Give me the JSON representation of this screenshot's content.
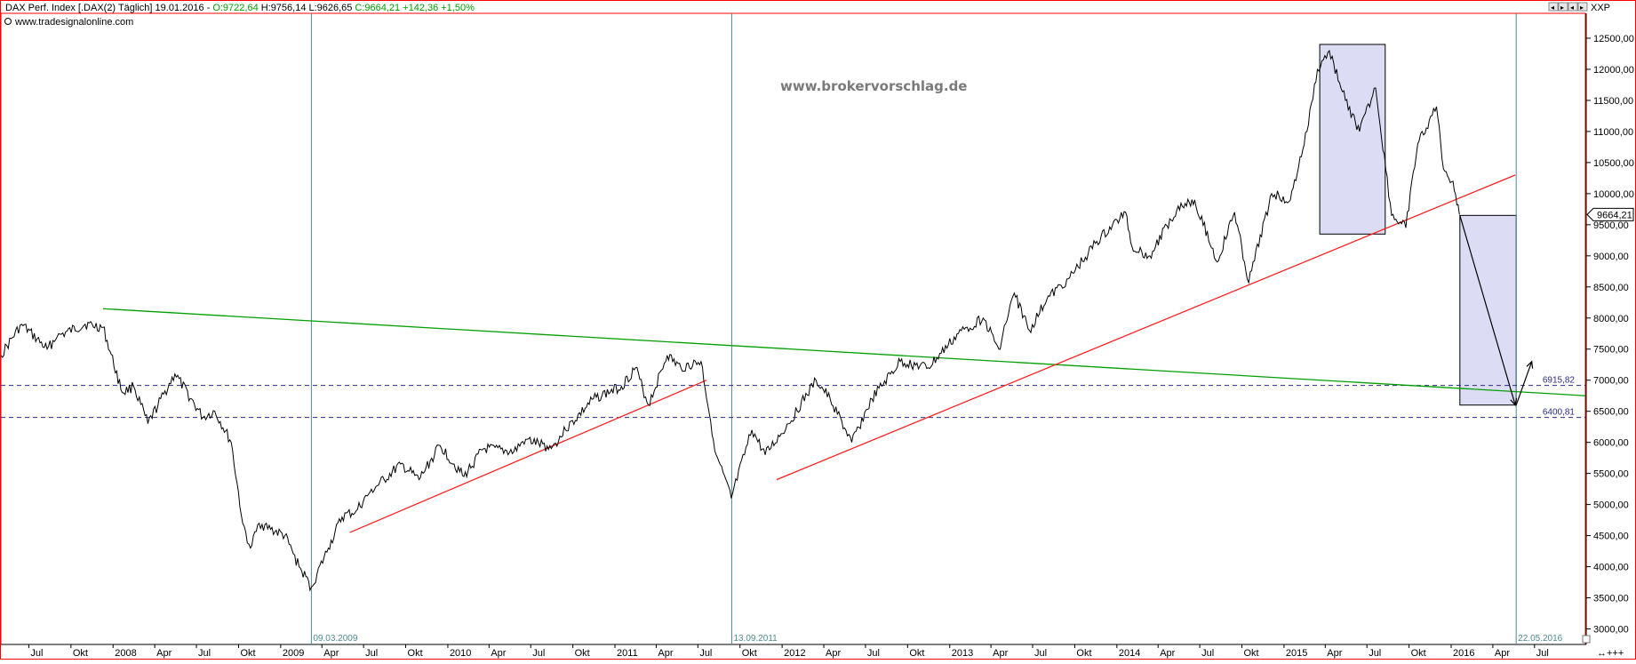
{
  "header": {
    "title": "DAX Perf. Index [.DAX(2)  Täglich] 19.01.2016 -",
    "open": "O:9722,64",
    "high": "H:9756,14",
    "low": "L:9626,65",
    "close": "C:9664,21",
    "change": "+142,36",
    "change_pct": "+1,50%",
    "source": "www.tradesignalonline.com",
    "top_right_label": "XXP",
    "colors": {
      "title": "#000000",
      "ohlc": "#000000",
      "close": "#00a000",
      "change": "#00a000"
    }
  },
  "watermark": "www.brokervorschlag.de",
  "chart_data": {
    "type": "line",
    "title": "DAX Perf. Index [.DAX(2)  Täglich] 19.01.2016",
    "xlabel": "",
    "ylabel": "",
    "y_scale": "linear",
    "ylim": [
      2750,
      12900
    ],
    "xlim": [
      "2007-05-01",
      "2016-10-20"
    ],
    "grid": false,
    "y_ticks": [
      "12500,00",
      "12000,00",
      "11500,00",
      "11000,00",
      "10500,00",
      "10000,00",
      "9500,00",
      "9000,00",
      "8500,00",
      "8000,00",
      "7500,00",
      "7000,00",
      "6500,00",
      "6000,00",
      "5500,00",
      "5000,00",
      "4500,00",
      "4000,00",
      "3500,00",
      "3000,00"
    ],
    "y_tick_values": [
      12500,
      12000,
      11500,
      11000,
      10500,
      10000,
      9500,
      9000,
      8500,
      8000,
      7500,
      7000,
      6500,
      6000,
      5500,
      5000,
      4500,
      4000,
      3500,
      3000
    ],
    "x_ticks": [
      {
        "date": "2007-07-01",
        "label": "Jul"
      },
      {
        "date": "2007-10-01",
        "label": "Okt"
      },
      {
        "date": "2008-01-01",
        "label": "2008"
      },
      {
        "date": "2008-04-01",
        "label": "Apr"
      },
      {
        "date": "2008-07-01",
        "label": "Jul"
      },
      {
        "date": "2008-10-01",
        "label": "Okt"
      },
      {
        "date": "2009-01-01",
        "label": "2009"
      },
      {
        "date": "2009-04-01",
        "label": "Apr"
      },
      {
        "date": "2009-07-01",
        "label": "Jul"
      },
      {
        "date": "2009-10-01",
        "label": "Okt"
      },
      {
        "date": "2010-01-01",
        "label": "2010"
      },
      {
        "date": "2010-04-01",
        "label": "Apr"
      },
      {
        "date": "2010-07-01",
        "label": "Jul"
      },
      {
        "date": "2010-10-01",
        "label": "Okt"
      },
      {
        "date": "2011-01-01",
        "label": "2011"
      },
      {
        "date": "2011-04-01",
        "label": "Apr"
      },
      {
        "date": "2011-07-01",
        "label": "Jul"
      },
      {
        "date": "2011-10-01",
        "label": "Okt"
      },
      {
        "date": "2012-01-01",
        "label": "2012"
      },
      {
        "date": "2012-04-01",
        "label": "Apr"
      },
      {
        "date": "2012-07-01",
        "label": "Jul"
      },
      {
        "date": "2012-10-01",
        "label": "Okt"
      },
      {
        "date": "2013-01-01",
        "label": "2013"
      },
      {
        "date": "2013-04-01",
        "label": "Apr"
      },
      {
        "date": "2013-07-01",
        "label": "Jul"
      },
      {
        "date": "2013-10-01",
        "label": "Okt"
      },
      {
        "date": "2014-01-01",
        "label": "2014"
      },
      {
        "date": "2014-04-01",
        "label": "Apr"
      },
      {
        "date": "2014-07-01",
        "label": "Jul"
      },
      {
        "date": "2014-10-01",
        "label": "Okt"
      },
      {
        "date": "2015-01-01",
        "label": "2015"
      },
      {
        "date": "2015-04-01",
        "label": "Apr"
      },
      {
        "date": "2015-07-01",
        "label": "Jul"
      },
      {
        "date": "2015-10-01",
        "label": "Okt"
      },
      {
        "date": "2016-01-01",
        "label": "2016"
      },
      {
        "date": "2016-04-01",
        "label": "Apr"
      },
      {
        "date": "2016-07-01",
        "label": "Jul"
      }
    ],
    "series": [
      {
        "color": "#000000",
        "x": [
          "2007-05-01",
          "2007-06-15",
          "2007-08-10",
          "2007-09-01",
          "2007-11-01",
          "2007-12-10",
          "2008-01-21",
          "2008-02-15",
          "2008-03-17",
          "2008-05-15",
          "2008-07-15",
          "2008-08-10",
          "2008-09-15",
          "2008-10-10",
          "2008-10-27",
          "2008-11-15",
          "2008-12-10",
          "2009-01-10",
          "2009-02-10",
          "2009-03-09",
          "2009-04-15",
          "2009-05-15",
          "2009-06-15",
          "2009-07-15",
          "2009-08-15",
          "2009-09-20",
          "2009-10-30",
          "2009-12-15",
          "2010-02-05",
          "2010-03-20",
          "2010-05-25",
          "2010-06-20",
          "2010-08-15",
          "2010-09-15",
          "2010-11-15",
          "2011-01-15",
          "2011-02-15",
          "2011-03-15",
          "2011-04-25",
          "2011-05-25",
          "2011-07-08",
          "2011-08-10",
          "2011-09-12",
          "2011-10-27",
          "2011-11-25",
          "2012-01-15",
          "2012-03-15",
          "2012-04-15",
          "2012-06-01",
          "2012-07-15",
          "2012-09-15",
          "2012-11-15",
          "2013-01-20",
          "2013-03-15",
          "2013-04-18",
          "2013-05-22",
          "2013-06-24",
          "2013-08-01",
          "2013-09-20",
          "2013-11-15",
          "2014-01-20",
          "2014-02-03",
          "2014-03-14",
          "2014-05-15",
          "2014-06-20",
          "2014-08-08",
          "2014-09-15",
          "2014-10-16",
          "2014-12-05",
          "2015-01-15",
          "2015-02-20",
          "2015-03-15",
          "2015-04-10",
          "2015-05-15",
          "2015-06-15",
          "2015-07-20",
          "2015-08-24",
          "2015-09-24",
          "2015-10-20",
          "2015-11-30",
          "2015-12-15",
          "2016-01-05",
          "2016-01-19"
        ],
        "values": [
          7400,
          7900,
          7500,
          7700,
          7900,
          7850,
          6800,
          6900,
          6300,
          7100,
          6400,
          6500,
          6000,
          4700,
          4300,
          4700,
          4600,
          4500,
          4000,
          3670,
          4300,
          4800,
          4900,
          5200,
          5400,
          5650,
          5400,
          5950,
          5450,
          5900,
          5850,
          6050,
          5900,
          6200,
          6700,
          6900,
          7200,
          6600,
          7400,
          7200,
          7300,
          5800,
          5100,
          6200,
          5800,
          6300,
          7000,
          6700,
          6000,
          6700,
          7300,
          7200,
          7750,
          8000,
          7500,
          8400,
          7800,
          8300,
          8650,
          9200,
          9700,
          9150,
          9000,
          9800,
          9900,
          8900,
          9700,
          8570,
          10000,
          9900,
          11000,
          12000,
          12300,
          11500,
          11000,
          11700,
          9650,
          9450,
          10800,
          11400,
          10400,
          10200,
          9664
        ]
      }
    ],
    "horizontal_lines": [
      {
        "value": 6915.82,
        "label": "6915,82",
        "color": "#2a2a8a",
        "style": "dashed"
      },
      {
        "value": 6400.81,
        "label": "6400,81",
        "color": "#2a2a8a",
        "style": "dashed"
      }
    ],
    "last_value_label": "9664,21",
    "vertical_markers": [
      {
        "date": "2009-03-09",
        "label": "09.03.2009",
        "color": "#4d8a8f"
      },
      {
        "date": "2011-09-13",
        "label": "13.09.2011",
        "color": "#4d8a8f"
      },
      {
        "date": "2016-05-22",
        "label": "22.05.2016",
        "color": "#4d8a8f"
      }
    ],
    "trendlines": [
      {
        "color": "#00a000",
        "from": {
          "date": "2007-12-10",
          "value": 8150
        },
        "to": {
          "date": "2016-10-20",
          "value": 6750
        }
      },
      {
        "color": "#ff2020",
        "from": {
          "date": "2009-06-01",
          "value": 4550
        },
        "to": {
          "date": "2011-07-20",
          "value": 7000
        }
      },
      {
        "color": "#ff2020",
        "from": {
          "date": "2011-12-20",
          "value": 5400
        },
        "to": {
          "date": "2016-05-20",
          "value": 10300
        }
      }
    ],
    "rectangles": [
      {
        "fill": "#dcdcf5",
        "stroke": "#000000",
        "from": {
          "date": "2015-03-20",
          "value": 9350
        },
        "to": {
          "date": "2015-08-10",
          "value": 12400
        }
      },
      {
        "fill": "#dcdcf5",
        "stroke": "#000000",
        "from": {
          "date": "2016-01-20",
          "value": 6600
        },
        "to": {
          "date": "2016-05-22",
          "value": 9650
        }
      }
    ],
    "arrows": [
      {
        "color": "#000000",
        "from": {
          "date": "2016-01-20",
          "value": 9650
        },
        "to": {
          "date": "2016-05-20",
          "value": 6600
        }
      },
      {
        "color": "#000000",
        "from": {
          "date": "2016-05-22",
          "value": 6600
        },
        "to": {
          "date": "2016-06-25",
          "value": 7300
        }
      }
    ]
  }
}
